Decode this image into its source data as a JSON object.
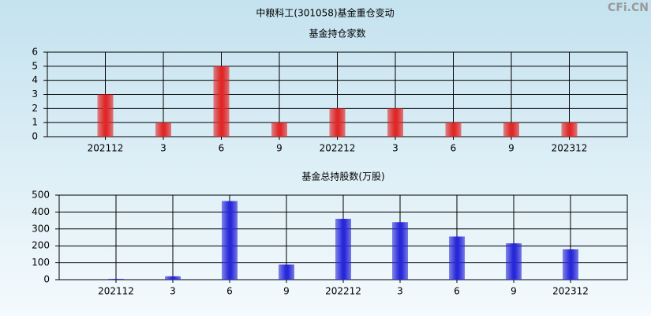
{
  "title": "中粮科工(301058)基金重仓变动",
  "watermark": "CFi.CN",
  "chart_data": [
    {
      "type": "bar",
      "title": "基金持仓家数",
      "categories": [
        "202112",
        "3",
        "6",
        "9",
        "202212",
        "3",
        "6",
        "9",
        "202312"
      ],
      "values": [
        3,
        1,
        5,
        1,
        2,
        2,
        1,
        1,
        1
      ],
      "color": "#e02828",
      "ylim": [
        0,
        6
      ],
      "yticks": [
        0,
        1,
        2,
        3,
        4,
        5,
        6
      ],
      "grid": true
    },
    {
      "type": "bar",
      "title": "基金总持股数(万股)",
      "categories": [
        "202112",
        "3",
        "6",
        "9",
        "202212",
        "3",
        "6",
        "9",
        "202312"
      ],
      "values": [
        5,
        20,
        465,
        90,
        360,
        340,
        255,
        215,
        180
      ],
      "color": "#2828d8",
      "ylim": [
        0,
        500
      ],
      "yticks": [
        0,
        100,
        200,
        300,
        400,
        500
      ],
      "grid": true
    }
  ]
}
